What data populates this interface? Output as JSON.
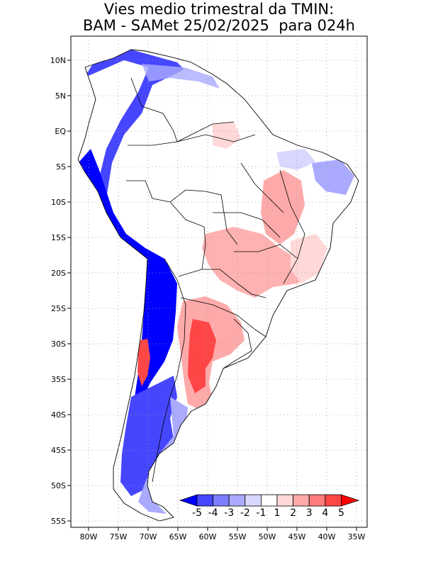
{
  "title": {
    "line1": "Vies medio trimestral da TMIN:",
    "line2": "BAM - SAMet 25/02/2025  para 024h"
  },
  "axes": {
    "lat_ticks": [
      "10N",
      "5N",
      "EQ",
      "5S",
      "10S",
      "15S",
      "20S",
      "25S",
      "30S",
      "35S",
      "40S",
      "45S",
      "50S",
      "55S"
    ],
    "lon_ticks": [
      "80W",
      "75W",
      "70W",
      "65W",
      "60W",
      "55W",
      "50W",
      "45W",
      "40W",
      "35W"
    ]
  },
  "colorbar": {
    "labels": [
      "-5",
      "-4",
      "-3",
      "-2",
      "-1",
      "1",
      "2",
      "3",
      "4",
      "5"
    ],
    "colors": [
      "#0000ff",
      "#4646ff",
      "#7c7cff",
      "#aaaaff",
      "#d8d8ff",
      "#ffffff",
      "#ffd8d8",
      "#ffaaaa",
      "#ff7c7c",
      "#ff4646",
      "#ff0000"
    ]
  },
  "colors": {
    "land_outline": "#000000",
    "grid": "#9a9a9a",
    "strong_cold": "#0000ff",
    "cold": "#4646ff",
    "mild_cold": "#aaaaff",
    "warm": "#ffaaaa",
    "strong_warm": "#ff4646"
  }
}
